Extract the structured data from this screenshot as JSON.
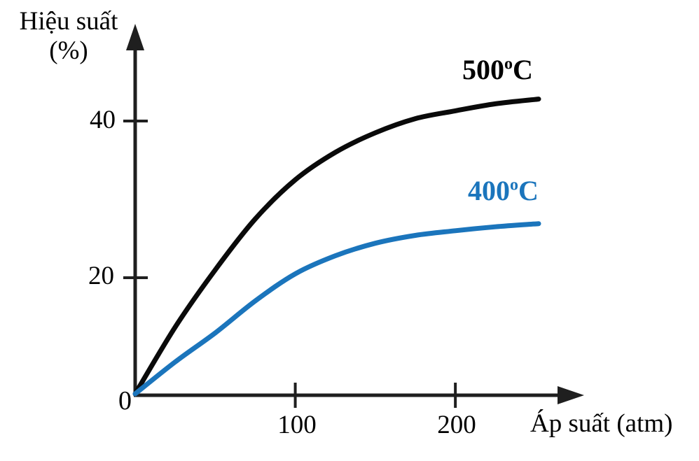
{
  "y_axis_title": {
    "line1": "Hiệu suất",
    "line2": "(%)"
  },
  "x_axis_title": "Áp suất (atm)",
  "colors": {
    "curve_500": "#0a0a0a",
    "curve_400": "#1b75bc",
    "axis": "#1f1f1f"
  },
  "chart_data": {
    "type": "line",
    "title": "",
    "xlabel": "Áp suất (atm)",
    "ylabel": "Hiệu suất (%)",
    "xlim": [
      0,
      278
    ],
    "ylim": [
      0,
      50
    ],
    "x_ticks": [
      0,
      100,
      200
    ],
    "y_ticks": [
      0,
      20,
      40
    ],
    "grid": false,
    "legend_position": "labels-next-to-curves",
    "series": [
      {
        "name": "500°C",
        "label_base": "500",
        "label_sup": "o",
        "label_unit": "C",
        "color": "#0a0a0a",
        "x": [
          0,
          25,
          50,
          75,
          100,
          125,
          150,
          175,
          200,
          225,
          252
        ],
        "y": [
          0,
          11.5,
          21,
          27.5,
          32.5,
          36,
          38.5,
          40.3,
          41.3,
          42.2,
          42.8
        ]
      },
      {
        "name": "400°C",
        "label_base": "400",
        "label_sup": "o",
        "label_unit": "C",
        "color": "#1b75bc",
        "x": [
          0,
          25,
          50,
          75,
          100,
          125,
          150,
          175,
          200,
          225,
          252
        ],
        "y": [
          0,
          5.5,
          10.5,
          16,
          20.5,
          22.8,
          24.4,
          25.4,
          26.0,
          26.5,
          26.9
        ]
      }
    ]
  }
}
